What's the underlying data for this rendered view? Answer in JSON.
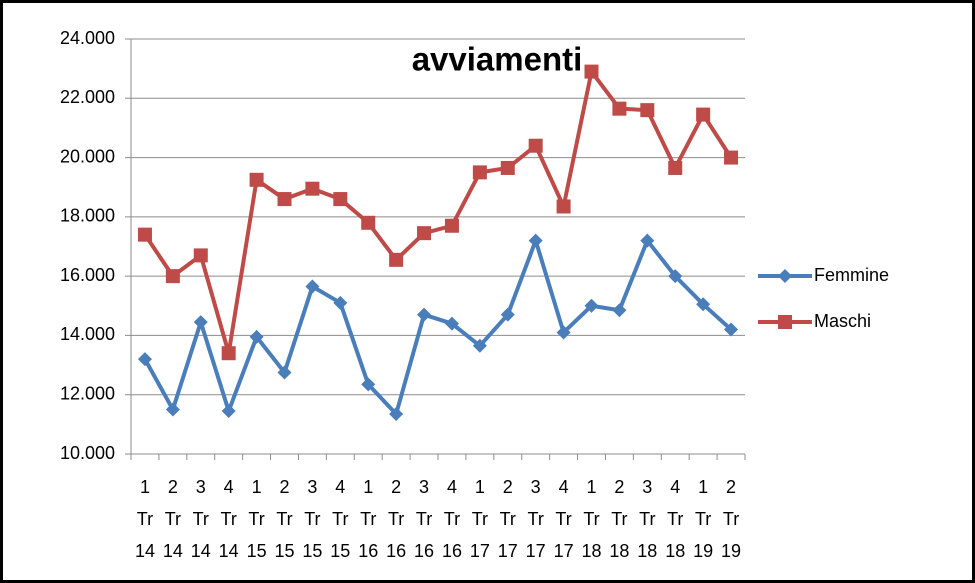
{
  "chart_data": {
    "type": "line",
    "title": "avviamenti",
    "categories": [
      [
        "1",
        "Tr",
        "14"
      ],
      [
        "2",
        "Tr",
        "14"
      ],
      [
        "3",
        "Tr",
        "14"
      ],
      [
        "4",
        "Tr",
        "14"
      ],
      [
        "1",
        "Tr",
        "15"
      ],
      [
        "2",
        "Tr",
        "15"
      ],
      [
        "3",
        "Tr",
        "15"
      ],
      [
        "4",
        "Tr",
        "15"
      ],
      [
        "1",
        "Tr",
        "16"
      ],
      [
        "2",
        "Tr",
        "16"
      ],
      [
        "3",
        "Tr",
        "16"
      ],
      [
        "4",
        "Tr",
        "16"
      ],
      [
        "1",
        "Tr",
        "17"
      ],
      [
        "2",
        "Tr",
        "17"
      ],
      [
        "3",
        "Tr",
        "17"
      ],
      [
        "4",
        "Tr",
        "17"
      ],
      [
        "1",
        "Tr",
        "18"
      ],
      [
        "2",
        "Tr",
        "18"
      ],
      [
        "3",
        "Tr",
        "18"
      ],
      [
        "4",
        "Tr",
        "18"
      ],
      [
        "1",
        "Tr",
        "19"
      ],
      [
        "2",
        "Tr",
        "19"
      ]
    ],
    "series": [
      {
        "name": "Femmine",
        "color": "#4a7ebb",
        "marker": "diamond",
        "values": [
          13200,
          11500,
          14450,
          11450,
          13950,
          12750,
          15650,
          15100,
          12350,
          11350,
          14700,
          14400,
          13650,
          14700,
          17200,
          14100,
          15000,
          14850,
          17200,
          16000,
          15050,
          14200
        ]
      },
      {
        "name": "Maschi",
        "color": "#be4b48",
        "marker": "square",
        "values": [
          17400,
          16000,
          16700,
          13400,
          19250,
          18600,
          18950,
          18600,
          17800,
          16550,
          17450,
          17700,
          19500,
          19650,
          20400,
          18350,
          22900,
          21650,
          21600,
          19650,
          21450,
          20000
        ]
      }
    ],
    "ylim": [
      10000,
      24000
    ],
    "yticks": [
      {
        "value": 10000,
        "label": "10.000"
      },
      {
        "value": 12000,
        "label": "12.000"
      },
      {
        "value": 14000,
        "label": "14.000"
      },
      {
        "value": 16000,
        "label": "16.000"
      },
      {
        "value": 18000,
        "label": "18.000"
      },
      {
        "value": 20000,
        "label": "20.000"
      },
      {
        "value": 22000,
        "label": "22.000"
      },
      {
        "value": 24000,
        "label": "24.000"
      }
    ],
    "grid": true,
    "legend": "right"
  }
}
